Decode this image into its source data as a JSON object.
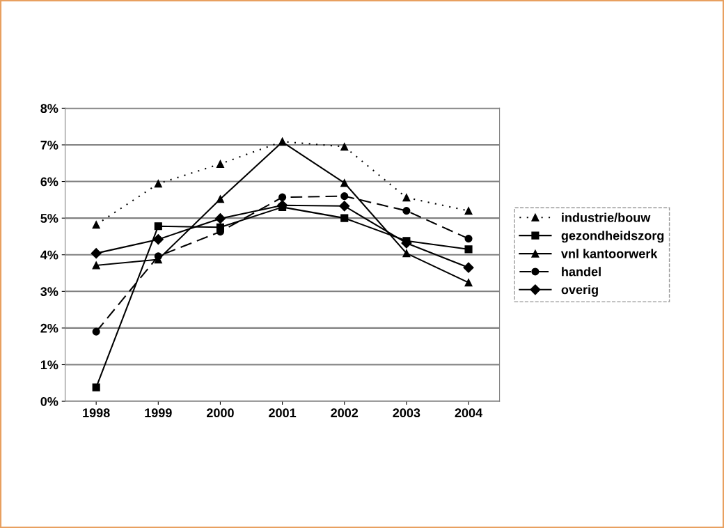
{
  "chart_data": {
    "type": "line",
    "categories": [
      "1998",
      "1999",
      "2000",
      "2001",
      "2002",
      "2003",
      "2004"
    ],
    "series": [
      {
        "name": "industrie/bouw",
        "color": "#000000",
        "marker": "triangle",
        "line_style": "dotted",
        "values": [
          4.82,
          5.94,
          6.48,
          7.09,
          6.95,
          5.56,
          5.2
        ]
      },
      {
        "name": "gezondheidszorg",
        "color": "#000000",
        "marker": "square",
        "line_style": "solid",
        "values": [
          0.38,
          4.78,
          4.75,
          5.3,
          5.0,
          4.38,
          4.15
        ]
      },
      {
        "name": "vnl kantoorwerk",
        "color": "#000000",
        "marker": "triangle",
        "line_style": "solid",
        "values": [
          3.71,
          3.87,
          5.52,
          7.08,
          5.96,
          4.04,
          3.24
        ]
      },
      {
        "name": "handel",
        "color": "#000000",
        "marker": "circle",
        "line_style": "dashed",
        "values": [
          1.9,
          3.96,
          4.63,
          5.57,
          5.6,
          5.2,
          4.44
        ]
      },
      {
        "name": "overig",
        "color": "#000000",
        "marker": "diamond",
        "line_style": "solid",
        "values": [
          4.04,
          4.42,
          4.99,
          5.35,
          5.33,
          4.32,
          3.65
        ]
      }
    ],
    "ylim": [
      0,
      8
    ],
    "yticks": [
      {
        "value": 0,
        "label": "0%"
      },
      {
        "value": 1,
        "label": "1%"
      },
      {
        "value": 2,
        "label": "2%"
      },
      {
        "value": 3,
        "label": "3%"
      },
      {
        "value": 4,
        "label": "4%"
      },
      {
        "value": 5,
        "label": "5%"
      },
      {
        "value": 6,
        "label": "6%"
      },
      {
        "value": 7,
        "label": "7%"
      },
      {
        "value": 8,
        "label": "8%"
      }
    ],
    "grid": "y",
    "legend": "right"
  }
}
